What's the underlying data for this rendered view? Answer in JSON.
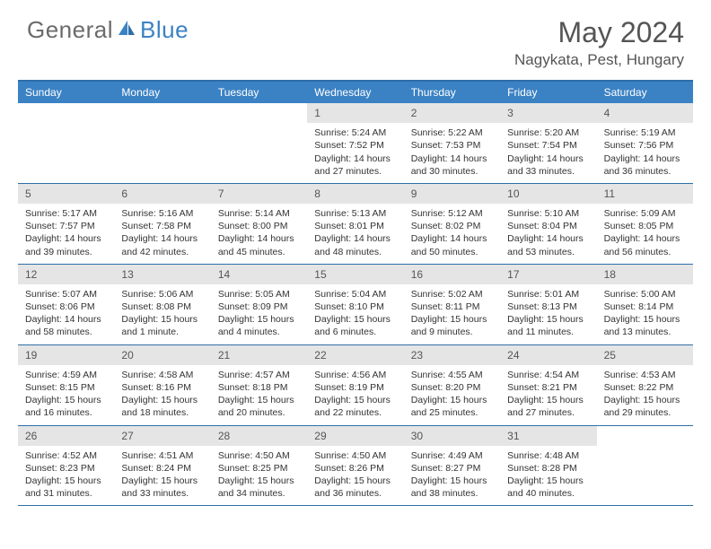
{
  "brand": {
    "part1": "General",
    "part2": "Blue"
  },
  "title": "May 2024",
  "location": "Nagykata, Pest, Hungary",
  "colors": {
    "header_bg": "#3b82c4",
    "border": "#2f6ea8",
    "daynum_bg": "#e5e5e5",
    "text": "#333333",
    "muted": "#555555"
  },
  "weekdays": [
    "Sunday",
    "Monday",
    "Tuesday",
    "Wednesday",
    "Thursday",
    "Friday",
    "Saturday"
  ],
  "weeks": [
    [
      {
        "empty": true
      },
      {
        "empty": true
      },
      {
        "empty": true
      },
      {
        "num": "1",
        "sunrise": "Sunrise: 5:24 AM",
        "sunset": "Sunset: 7:52 PM",
        "daylight1": "Daylight: 14 hours",
        "daylight2": "and 27 minutes."
      },
      {
        "num": "2",
        "sunrise": "Sunrise: 5:22 AM",
        "sunset": "Sunset: 7:53 PM",
        "daylight1": "Daylight: 14 hours",
        "daylight2": "and 30 minutes."
      },
      {
        "num": "3",
        "sunrise": "Sunrise: 5:20 AM",
        "sunset": "Sunset: 7:54 PM",
        "daylight1": "Daylight: 14 hours",
        "daylight2": "and 33 minutes."
      },
      {
        "num": "4",
        "sunrise": "Sunrise: 5:19 AM",
        "sunset": "Sunset: 7:56 PM",
        "daylight1": "Daylight: 14 hours",
        "daylight2": "and 36 minutes."
      }
    ],
    [
      {
        "num": "5",
        "sunrise": "Sunrise: 5:17 AM",
        "sunset": "Sunset: 7:57 PM",
        "daylight1": "Daylight: 14 hours",
        "daylight2": "and 39 minutes."
      },
      {
        "num": "6",
        "sunrise": "Sunrise: 5:16 AM",
        "sunset": "Sunset: 7:58 PM",
        "daylight1": "Daylight: 14 hours",
        "daylight2": "and 42 minutes."
      },
      {
        "num": "7",
        "sunrise": "Sunrise: 5:14 AM",
        "sunset": "Sunset: 8:00 PM",
        "daylight1": "Daylight: 14 hours",
        "daylight2": "and 45 minutes."
      },
      {
        "num": "8",
        "sunrise": "Sunrise: 5:13 AM",
        "sunset": "Sunset: 8:01 PM",
        "daylight1": "Daylight: 14 hours",
        "daylight2": "and 48 minutes."
      },
      {
        "num": "9",
        "sunrise": "Sunrise: 5:12 AM",
        "sunset": "Sunset: 8:02 PM",
        "daylight1": "Daylight: 14 hours",
        "daylight2": "and 50 minutes."
      },
      {
        "num": "10",
        "sunrise": "Sunrise: 5:10 AM",
        "sunset": "Sunset: 8:04 PM",
        "daylight1": "Daylight: 14 hours",
        "daylight2": "and 53 minutes."
      },
      {
        "num": "11",
        "sunrise": "Sunrise: 5:09 AM",
        "sunset": "Sunset: 8:05 PM",
        "daylight1": "Daylight: 14 hours",
        "daylight2": "and 56 minutes."
      }
    ],
    [
      {
        "num": "12",
        "sunrise": "Sunrise: 5:07 AM",
        "sunset": "Sunset: 8:06 PM",
        "daylight1": "Daylight: 14 hours",
        "daylight2": "and 58 minutes."
      },
      {
        "num": "13",
        "sunrise": "Sunrise: 5:06 AM",
        "sunset": "Sunset: 8:08 PM",
        "daylight1": "Daylight: 15 hours",
        "daylight2": "and 1 minute."
      },
      {
        "num": "14",
        "sunrise": "Sunrise: 5:05 AM",
        "sunset": "Sunset: 8:09 PM",
        "daylight1": "Daylight: 15 hours",
        "daylight2": "and 4 minutes."
      },
      {
        "num": "15",
        "sunrise": "Sunrise: 5:04 AM",
        "sunset": "Sunset: 8:10 PM",
        "daylight1": "Daylight: 15 hours",
        "daylight2": "and 6 minutes."
      },
      {
        "num": "16",
        "sunrise": "Sunrise: 5:02 AM",
        "sunset": "Sunset: 8:11 PM",
        "daylight1": "Daylight: 15 hours",
        "daylight2": "and 9 minutes."
      },
      {
        "num": "17",
        "sunrise": "Sunrise: 5:01 AM",
        "sunset": "Sunset: 8:13 PM",
        "daylight1": "Daylight: 15 hours",
        "daylight2": "and 11 minutes."
      },
      {
        "num": "18",
        "sunrise": "Sunrise: 5:00 AM",
        "sunset": "Sunset: 8:14 PM",
        "daylight1": "Daylight: 15 hours",
        "daylight2": "and 13 minutes."
      }
    ],
    [
      {
        "num": "19",
        "sunrise": "Sunrise: 4:59 AM",
        "sunset": "Sunset: 8:15 PM",
        "daylight1": "Daylight: 15 hours",
        "daylight2": "and 16 minutes."
      },
      {
        "num": "20",
        "sunrise": "Sunrise: 4:58 AM",
        "sunset": "Sunset: 8:16 PM",
        "daylight1": "Daylight: 15 hours",
        "daylight2": "and 18 minutes."
      },
      {
        "num": "21",
        "sunrise": "Sunrise: 4:57 AM",
        "sunset": "Sunset: 8:18 PM",
        "daylight1": "Daylight: 15 hours",
        "daylight2": "and 20 minutes."
      },
      {
        "num": "22",
        "sunrise": "Sunrise: 4:56 AM",
        "sunset": "Sunset: 8:19 PM",
        "daylight1": "Daylight: 15 hours",
        "daylight2": "and 22 minutes."
      },
      {
        "num": "23",
        "sunrise": "Sunrise: 4:55 AM",
        "sunset": "Sunset: 8:20 PM",
        "daylight1": "Daylight: 15 hours",
        "daylight2": "and 25 minutes."
      },
      {
        "num": "24",
        "sunrise": "Sunrise: 4:54 AM",
        "sunset": "Sunset: 8:21 PM",
        "daylight1": "Daylight: 15 hours",
        "daylight2": "and 27 minutes."
      },
      {
        "num": "25",
        "sunrise": "Sunrise: 4:53 AM",
        "sunset": "Sunset: 8:22 PM",
        "daylight1": "Daylight: 15 hours",
        "daylight2": "and 29 minutes."
      }
    ],
    [
      {
        "num": "26",
        "sunrise": "Sunrise: 4:52 AM",
        "sunset": "Sunset: 8:23 PM",
        "daylight1": "Daylight: 15 hours",
        "daylight2": "and 31 minutes."
      },
      {
        "num": "27",
        "sunrise": "Sunrise: 4:51 AM",
        "sunset": "Sunset: 8:24 PM",
        "daylight1": "Daylight: 15 hours",
        "daylight2": "and 33 minutes."
      },
      {
        "num": "28",
        "sunrise": "Sunrise: 4:50 AM",
        "sunset": "Sunset: 8:25 PM",
        "daylight1": "Daylight: 15 hours",
        "daylight2": "and 34 minutes."
      },
      {
        "num": "29",
        "sunrise": "Sunrise: 4:50 AM",
        "sunset": "Sunset: 8:26 PM",
        "daylight1": "Daylight: 15 hours",
        "daylight2": "and 36 minutes."
      },
      {
        "num": "30",
        "sunrise": "Sunrise: 4:49 AM",
        "sunset": "Sunset: 8:27 PM",
        "daylight1": "Daylight: 15 hours",
        "daylight2": "and 38 minutes."
      },
      {
        "num": "31",
        "sunrise": "Sunrise: 4:48 AM",
        "sunset": "Sunset: 8:28 PM",
        "daylight1": "Daylight: 15 hours",
        "daylight2": "and 40 minutes."
      },
      {
        "empty": true
      }
    ]
  ]
}
